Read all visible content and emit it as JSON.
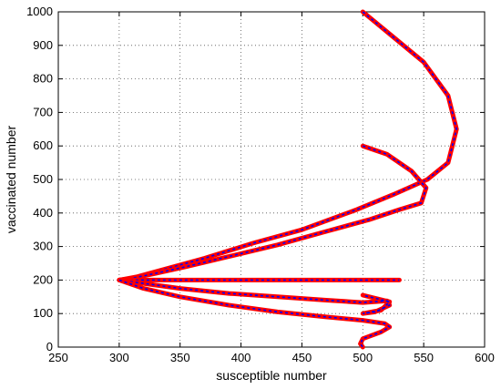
{
  "chart_data": {
    "type": "line",
    "title": "",
    "xlabel": "susceptible number",
    "ylabel": "vaccinated number",
    "xlim": [
      250,
      600
    ],
    "ylim": [
      0,
      1000
    ],
    "xticks": [
      250,
      300,
      350,
      400,
      450,
      500,
      550,
      600
    ],
    "yticks": [
      0,
      100,
      200,
      300,
      400,
      500,
      600,
      700,
      800,
      900,
      1000
    ],
    "grid": true,
    "grid_style": "dotted",
    "colors": {
      "marker": "#ff0000",
      "line": "#0000ff"
    },
    "series": [
      {
        "x": [
          500,
          525,
          550,
          570,
          577,
          570,
          553,
          525,
          495,
          450,
          410,
          370,
          340,
          315,
          300
        ],
        "y": [
          1000,
          925,
          850,
          750,
          650,
          550,
          500,
          455,
          410,
          350,
          310,
          265,
          235,
          210,
          200
        ]
      },
      {
        "x": [
          500,
          520,
          540,
          552,
          548,
          530,
          505,
          470,
          430,
          390,
          355,
          330,
          310,
          300
        ],
        "y": [
          600,
          575,
          525,
          475,
          430,
          410,
          380,
          345,
          305,
          270,
          240,
          220,
          205,
          200
        ]
      },
      {
        "x": [
          300,
          530
        ],
        "y": [
          200,
          200
        ]
      },
      {
        "x": [
          300,
          320,
          350,
          390,
          430,
          470,
          500,
          520,
          522,
          510,
          500,
          515,
          522,
          500
        ],
        "y": [
          200,
          190,
          175,
          160,
          150,
          140,
          133,
          138,
          125,
          105,
          100,
          110,
          135,
          155
        ]
      },
      {
        "x": [
          300,
          320,
          350,
          390,
          430,
          470,
          500,
          518,
          522,
          515,
          500,
          498,
          500
        ],
        "y": [
          200,
          175,
          150,
          125,
          105,
          90,
          80,
          70,
          60,
          45,
          25,
          10,
          0
        ]
      }
    ]
  }
}
